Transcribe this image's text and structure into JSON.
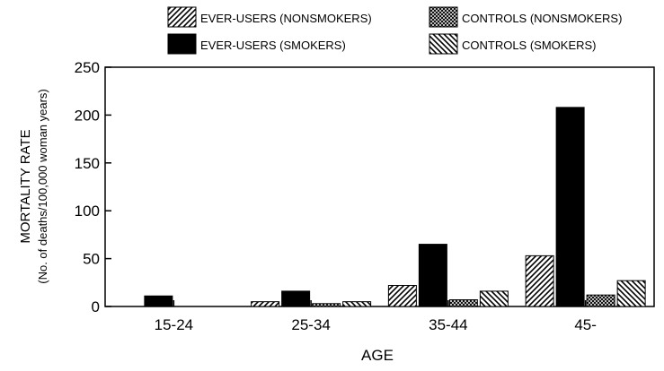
{
  "chart_data": {
    "type": "bar",
    "title": "",
    "xlabel": "AGE",
    "ylabel": "MORTALITY RATE",
    "ylabel_sub": "(No. of deaths/100,000 woman years)",
    "categories": [
      "15-24",
      "25-34",
      "35-44",
      "45-"
    ],
    "ylim": [
      0,
      250
    ],
    "yticks": [
      0,
      50,
      100,
      150,
      200,
      250
    ],
    "grid": false,
    "legend_position": "top",
    "series": [
      {
        "name": "EVER-USERS (NONSMOKERS)",
        "pattern": "diagonal-hatch",
        "values": [
          0,
          5,
          22,
          53
        ]
      },
      {
        "name": "EVER-USERS (SMOKERS)",
        "pattern": "solid-black",
        "values": [
          11,
          16,
          65,
          208
        ]
      },
      {
        "name": "CONTROLS (NONSMOKERS)",
        "pattern": "crosshatch",
        "values": [
          0,
          3,
          7,
          12
        ]
      },
      {
        "name": "CONTROLS (SMOKERS)",
        "pattern": "reverse-diagonal-hatch",
        "values": [
          0,
          5,
          16,
          27
        ]
      }
    ],
    "legend_order": [
      0,
      2,
      1,
      3
    ]
  }
}
